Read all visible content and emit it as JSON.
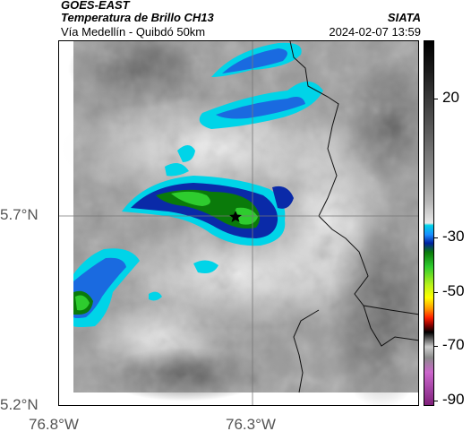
{
  "header": {
    "satellite": "GOES-EAST",
    "title": "Temperatura de Brillo CH13",
    "subtitle": "Vía Medellín - Quibdó 50km",
    "organization": "SIATA",
    "timestamp": "2024-02-07 13:59"
  },
  "map": {
    "lat_labels": [
      "5.7°N",
      "5.2°N"
    ],
    "lon_labels": [
      "76.8°W",
      "76.3°W"
    ],
    "marker": "star-marker"
  },
  "colorbar": {
    "tick_labels": [
      "20",
      "-30",
      "-50",
      "-70",
      "-90"
    ],
    "tick_values": [
      20,
      -30,
      -50,
      -70,
      -90
    ],
    "colors": {
      "warm": "#000000",
      "neutral": "#e8e8e8",
      "cold_cyan": "#00d4e8",
      "cold_blue": "#0020a0",
      "green": "#2ecc2e",
      "yellow": "#ffff00",
      "red": "#ff2000",
      "magenta": "#a040a0"
    }
  }
}
